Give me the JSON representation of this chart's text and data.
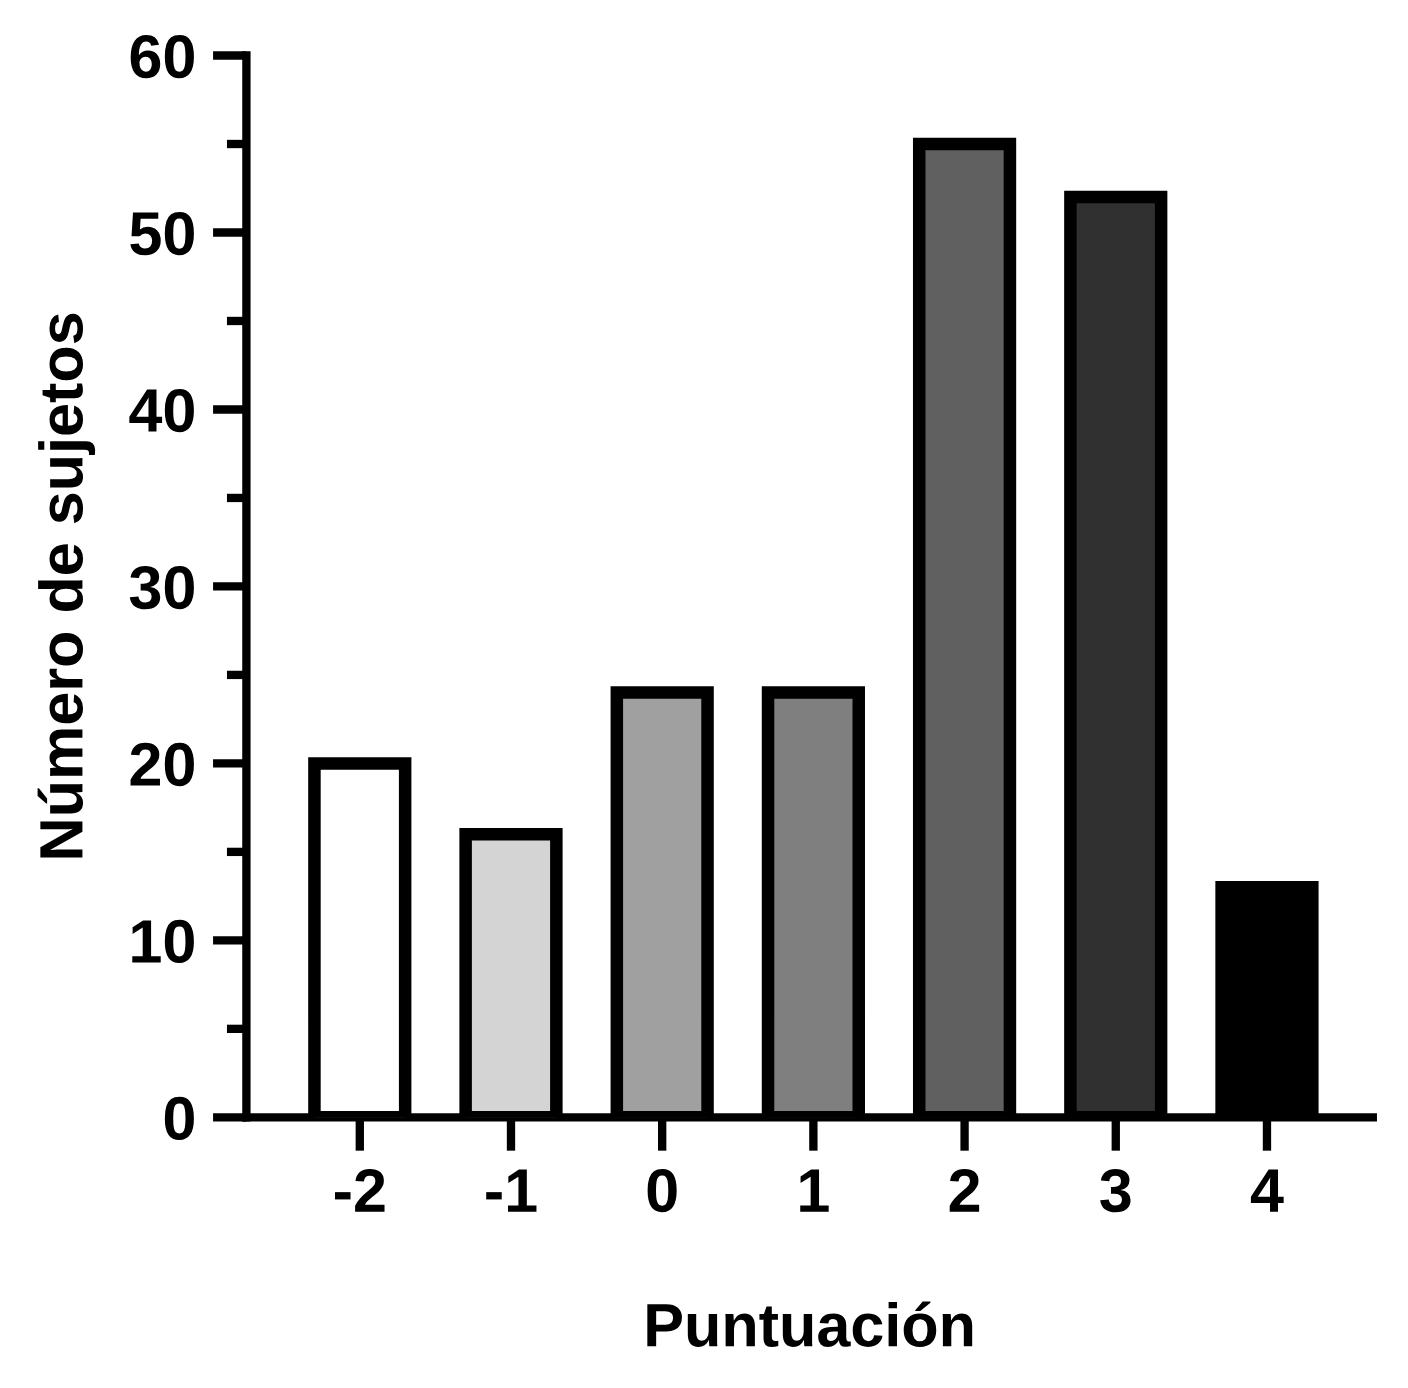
{
  "chart_data": {
    "type": "bar",
    "xlabel": "Puntuación",
    "ylabel": "Número de sujetos",
    "categories": [
      "-2",
      "-1",
      "0",
      "1",
      "2",
      "3",
      "4"
    ],
    "values": [
      20,
      16,
      24,
      24,
      55,
      52,
      13
    ],
    "colors": [
      "#ffffff",
      "#d4d4d4",
      "#a0a0a0",
      "#7f7f7f",
      "#606060",
      "#303030",
      "#000000"
    ],
    "ylim": [
      0,
      60
    ],
    "yticks": [
      0,
      10,
      20,
      30,
      40,
      50,
      60
    ],
    "grid": false
  }
}
